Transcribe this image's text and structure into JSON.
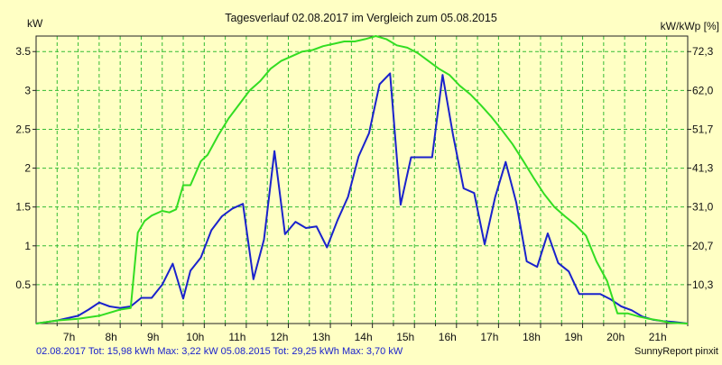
{
  "chart_data": {
    "type": "line",
    "title": "Tagesverlauf 02.08.2017 im Vergleich zum 05.08.2015",
    "ylabel_left": "kW",
    "ylabel_right": "kW/kWp [%]",
    "ylim": [
      0,
      3.7
    ],
    "yticks_left": [
      0.5,
      1,
      1.5,
      2,
      2.5,
      3,
      3.5
    ],
    "yticks_left_labels": [
      "0.5",
      "1",
      "1.5",
      "2",
      "2.5",
      "3",
      "3.5"
    ],
    "yticks_right": [
      0.5,
      1,
      1.5,
      2,
      2.5,
      3,
      3.5
    ],
    "yticks_right_labels": [
      "10,3",
      "20,7",
      "31,0",
      "41,3",
      "51,7",
      "62,0",
      "72,3"
    ],
    "xlim": [
      6.0,
      21.5
    ],
    "xticks": [
      7,
      8,
      9,
      10,
      11,
      12,
      13,
      14,
      15,
      16,
      17,
      18,
      19,
      20,
      21
    ],
    "xtick_labels": [
      "7h",
      "8h",
      "9h",
      "10h",
      "11h",
      "12h",
      "13h",
      "14h",
      "15h",
      "16h",
      "17h",
      "18h",
      "19h",
      "20h",
      "21h"
    ],
    "grid": true,
    "series": [
      {
        "name": "02.08.2017",
        "color": "#1a22cc",
        "x": [
          6.0,
          6.5,
          7.0,
          7.25,
          7.5,
          7.75,
          8.0,
          8.25,
          8.5,
          8.75,
          9.0,
          9.25,
          9.5,
          9.67,
          9.92,
          10.17,
          10.42,
          10.67,
          10.92,
          11.17,
          11.42,
          11.67,
          11.92,
          12.17,
          12.42,
          12.67,
          12.92,
          13.17,
          13.42,
          13.67,
          13.92,
          14.17,
          14.42,
          14.67,
          14.92,
          15.17,
          15.42,
          15.67,
          15.92,
          16.17,
          16.42,
          16.67,
          16.92,
          17.17,
          17.42,
          17.67,
          17.92,
          18.17,
          18.42,
          18.67,
          18.92,
          19.17,
          19.42,
          19.67,
          19.92,
          20.17,
          20.42,
          20.67,
          20.92,
          21.17,
          21.5
        ],
        "values": [
          0.0,
          0.04,
          0.1,
          0.18,
          0.27,
          0.22,
          0.2,
          0.22,
          0.33,
          0.33,
          0.5,
          0.77,
          0.32,
          0.68,
          0.85,
          1.2,
          1.38,
          1.48,
          1.54,
          0.57,
          1.08,
          2.22,
          1.15,
          1.31,
          1.23,
          1.25,
          0.98,
          1.33,
          1.63,
          2.15,
          2.45,
          3.08,
          3.22,
          1.53,
          2.14,
          2.14,
          2.14,
          3.2,
          2.42,
          1.74,
          1.68,
          1.02,
          1.63,
          2.08,
          1.56,
          0.8,
          0.73,
          1.16,
          0.78,
          0.67,
          0.38,
          0.38,
          0.38,
          0.31,
          0.22,
          0.17,
          0.09,
          0.05,
          0.03,
          0.02,
          0.0
        ]
      },
      {
        "name": "05.08.2015",
        "color": "#33dd22",
        "x": [
          6.0,
          6.5,
          7.0,
          7.5,
          8.0,
          8.25,
          8.42,
          8.58,
          8.75,
          9.0,
          9.17,
          9.33,
          9.5,
          9.67,
          9.92,
          10.08,
          10.33,
          10.58,
          10.83,
          11.08,
          11.33,
          11.58,
          11.83,
          12.08,
          12.33,
          12.58,
          12.83,
          13.08,
          13.33,
          13.58,
          13.83,
          14.08,
          14.33,
          14.58,
          14.83,
          15.08,
          15.33,
          15.58,
          15.83,
          16.08,
          16.33,
          16.58,
          16.83,
          17.08,
          17.33,
          17.58,
          17.83,
          18.08,
          18.33,
          18.58,
          18.83,
          19.08,
          19.33,
          19.58,
          19.83,
          20.08,
          20.33,
          20.58,
          20.83,
          21.08,
          21.5
        ],
        "values": [
          0.0,
          0.04,
          0.06,
          0.1,
          0.18,
          0.2,
          1.17,
          1.32,
          1.39,
          1.45,
          1.43,
          1.47,
          1.78,
          1.78,
          2.09,
          2.17,
          2.42,
          2.64,
          2.82,
          3.0,
          3.12,
          3.28,
          3.38,
          3.44,
          3.5,
          3.52,
          3.57,
          3.6,
          3.63,
          3.63,
          3.66,
          3.7,
          3.66,
          3.58,
          3.55,
          3.48,
          3.38,
          3.28,
          3.2,
          3.06,
          2.95,
          2.81,
          2.66,
          2.49,
          2.31,
          2.1,
          1.88,
          1.67,
          1.5,
          1.38,
          1.27,
          1.13,
          0.8,
          0.55,
          0.13,
          0.13,
          0.09,
          0.06,
          0.04,
          0.01,
          0.0
        ]
      }
    ]
  },
  "footer": {
    "left_text": "02.08.2017 Tot: 15,98 kWh Max: 3,22 kW 05.08.2015 Tot: 29,25 kWh Max: 3,70 kW",
    "right_text": "SunnyReport pinxit"
  }
}
